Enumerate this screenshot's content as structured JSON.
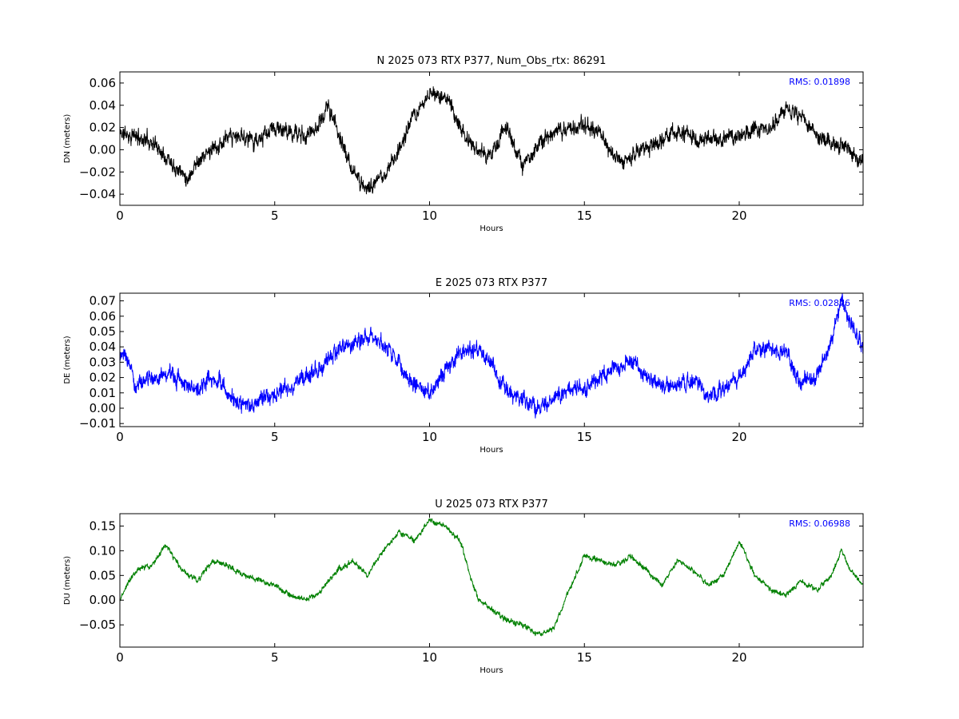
{
  "chart_data": [
    {
      "type": "line",
      "title": "N 2025 073 RTX  P377, Num_Obs_rtx: 86291",
      "xlabel": "Hours",
      "ylabel": "DN (meters)",
      "xlim": [
        0,
        24
      ],
      "ylim": [
        -0.05,
        0.07
      ],
      "xticks": [
        0,
        5,
        10,
        15,
        20
      ],
      "xtick_labels": [
        "0",
        "5",
        "10",
        "15",
        "20"
      ],
      "yticks": [
        -0.04,
        -0.02,
        0.0,
        0.02,
        0.04,
        0.06
      ],
      "ytick_labels": [
        "−0.04",
        "−0.02",
        "0.00",
        "0.02",
        "0.04",
        "0.06"
      ],
      "annotation": "RMS:  0.01898",
      "grid": false,
      "noise": 0.008,
      "seed": 11,
      "series": [
        {
          "color": "#000000",
          "x": [
            0,
            0.5,
            1,
            1.5,
            2,
            2.2,
            2.5,
            3,
            3.5,
            4,
            4.5,
            5,
            5.5,
            6,
            6.5,
            6.7,
            7,
            7.5,
            8,
            8.5,
            9,
            9.5,
            10,
            10.3,
            10.6,
            11,
            11.5,
            12,
            12.5,
            13,
            13.5,
            14,
            14.5,
            15,
            15.5,
            16,
            16.5,
            17,
            17.5,
            18,
            18.5,
            19,
            19.5,
            20,
            20.5,
            21,
            21.5,
            22,
            22.5,
            23,
            23.5,
            24
          ],
          "y": [
            0.015,
            0.012,
            0.008,
            -0.005,
            -0.02,
            -0.025,
            -0.01,
            0.0,
            0.01,
            0.012,
            0.008,
            0.02,
            0.015,
            0.012,
            0.025,
            0.04,
            0.02,
            -0.02,
            -0.035,
            -0.025,
            0.0,
            0.03,
            0.05,
            0.048,
            0.045,
            0.02,
            0.0,
            -0.005,
            0.02,
            -0.015,
            0.005,
            0.015,
            0.02,
            0.02,
            0.015,
            -0.01,
            -0.005,
            0.0,
            0.01,
            0.015,
            0.012,
            0.008,
            0.01,
            0.012,
            0.018,
            0.02,
            0.035,
            0.03,
            0.015,
            0.005,
            0.0,
            -0.01
          ]
        }
      ]
    },
    {
      "type": "line",
      "title": "E 2025 073 RTX  P377",
      "xlabel": "Hours",
      "ylabel": "DE (meters)",
      "xlim": [
        0,
        24
      ],
      "ylim": [
        -0.012,
        0.075
      ],
      "xticks": [
        0,
        5,
        10,
        15,
        20
      ],
      "xtick_labels": [
        "0",
        "5",
        "10",
        "15",
        "20"
      ],
      "yticks": [
        -0.01,
        0.0,
        0.01,
        0.02,
        0.03,
        0.04,
        0.05,
        0.06,
        0.07
      ],
      "ytick_labels": [
        "−0.01",
        "0.00",
        "0.01",
        "0.02",
        "0.03",
        "0.04",
        "0.05",
        "0.06",
        "0.07"
      ],
      "annotation": "RMS:  0.02876",
      "grid": false,
      "noise": 0.006,
      "seed": 23,
      "series": [
        {
          "color": "#0000ff",
          "x": [
            0,
            0.3,
            0.5,
            1,
            1.5,
            2,
            2.5,
            3,
            3.5,
            4,
            4.5,
            5,
            5.5,
            6,
            6.5,
            7,
            7.5,
            8,
            8.5,
            9,
            9.5,
            10,
            10.5,
            11,
            11.5,
            12,
            12.5,
            13,
            13.5,
            14,
            14.5,
            15,
            15.5,
            16,
            16.5,
            17,
            17.5,
            18,
            18.5,
            19,
            19.5,
            20,
            20.5,
            21,
            21.5,
            22,
            22.5,
            23,
            23.3,
            23.6,
            24
          ],
          "y": [
            0.035,
            0.03,
            0.015,
            0.02,
            0.022,
            0.018,
            0.012,
            0.02,
            0.01,
            0.0,
            0.005,
            0.01,
            0.015,
            0.02,
            0.028,
            0.038,
            0.042,
            0.048,
            0.042,
            0.03,
            0.015,
            0.01,
            0.025,
            0.035,
            0.04,
            0.028,
            0.012,
            0.005,
            0.0,
            0.005,
            0.012,
            0.012,
            0.02,
            0.025,
            0.03,
            0.02,
            0.015,
            0.015,
            0.018,
            0.008,
            0.012,
            0.02,
            0.038,
            0.04,
            0.035,
            0.018,
            0.02,
            0.045,
            0.07,
            0.055,
            0.04
          ]
        }
      ]
    },
    {
      "type": "line",
      "title": "U 2025 073 RTX  P377",
      "xlabel": "Hours",
      "ylabel": "DU (meters)",
      "xlim": [
        0,
        24
      ],
      "ylim": [
        -0.095,
        0.175
      ],
      "xticks": [
        0,
        5,
        10,
        15,
        20
      ],
      "xtick_labels": [
        "0",
        "5",
        "10",
        "15",
        "20"
      ],
      "yticks": [
        -0.05,
        0.0,
        0.05,
        0.1,
        0.15
      ],
      "ytick_labels": [
        "−0.05",
        "0.00",
        "0.05",
        "0.10",
        "0.15"
      ],
      "annotation": "RMS:  0.06988",
      "grid": false,
      "noise": 0.006,
      "seed": 37,
      "series": [
        {
          "color": "#008000",
          "x": [
            0,
            0.3,
            0.5,
            1,
            1.5,
            2,
            2.5,
            3,
            3.5,
            4,
            4.5,
            5,
            5.5,
            6,
            6.5,
            7,
            7.5,
            8,
            8.5,
            9,
            9.5,
            10,
            10.5,
            11,
            11.3,
            11.6,
            12,
            12.5,
            13,
            13.5,
            14,
            14.5,
            15,
            15.5,
            16,
            16.5,
            17,
            17.5,
            18,
            18.5,
            19,
            19.5,
            20,
            20.5,
            21,
            21.5,
            22,
            22.5,
            23,
            23.3,
            23.6,
            24
          ],
          "y": [
            0.0,
            0.04,
            0.06,
            0.07,
            0.11,
            0.06,
            0.04,
            0.08,
            0.07,
            0.05,
            0.04,
            0.03,
            0.01,
            0.0,
            0.02,
            0.06,
            0.08,
            0.05,
            0.1,
            0.14,
            0.12,
            0.16,
            0.15,
            0.12,
            0.05,
            0.0,
            -0.02,
            -0.04,
            -0.05,
            -0.07,
            -0.06,
            0.02,
            0.09,
            0.08,
            0.07,
            0.09,
            0.06,
            0.03,
            0.08,
            0.06,
            0.03,
            0.05,
            0.12,
            0.05,
            0.02,
            0.01,
            0.04,
            0.02,
            0.05,
            0.1,
            0.06,
            0.03
          ]
        }
      ]
    }
  ]
}
